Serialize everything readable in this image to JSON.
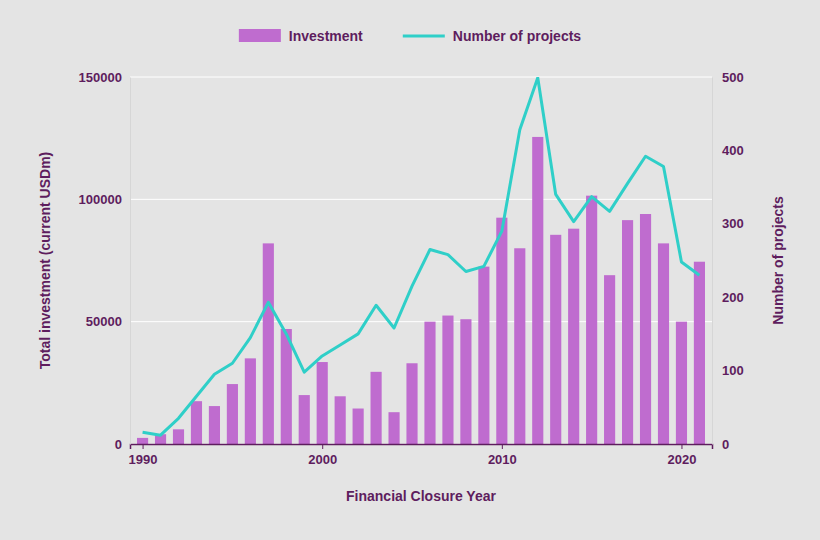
{
  "chart_data": {
    "type": "bar",
    "x": [
      1990,
      1991,
      1992,
      1993,
      1994,
      1995,
      1996,
      1997,
      1998,
      1999,
      2000,
      2001,
      2002,
      2003,
      2004,
      2005,
      2006,
      2007,
      2008,
      2009,
      2010,
      2011,
      2012,
      2013,
      2014,
      2015,
      2016,
      2017,
      2018,
      2019,
      2020,
      2021
    ],
    "x_label": "Financial Closure Year",
    "y_label": "Total investment (current USDm)",
    "y2_label": "Number of projects",
    "xlim": [
      1989.3,
      2021.7
    ],
    "xticks": [
      1990,
      2000,
      2010,
      2020
    ],
    "ylim": [
      0,
      150000
    ],
    "yticks": [
      0,
      50000,
      100000,
      150000
    ],
    "y2lim": [
      0,
      500
    ],
    "y2ticks": [
      0,
      100,
      200,
      300,
      400,
      500
    ],
    "grid": true,
    "legend": "top",
    "series": [
      {
        "name": "Investment",
        "type": "bar",
        "color": "#bf6ccf",
        "values": [
          2500,
          4000,
          6000,
          17500,
          15500,
          24500,
          35000,
          82000,
          47000,
          20000,
          33500,
          19500,
          14500,
          29500,
          13000,
          33000,
          50000,
          52500,
          51000,
          72500,
          92500,
          80000,
          125500,
          85500,
          88000,
          101500,
          69000,
          91500,
          94000,
          82000,
          50000,
          74500
        ]
      },
      {
        "name": "Number of projects",
        "type": "line",
        "axis": "y2",
        "color": "#2fcfc8",
        "values": [
          16,
          12,
          35,
          65,
          95,
          110,
          145,
          193,
          150,
          98,
          120,
          135,
          150,
          189,
          158,
          215,
          265,
          258,
          235,
          242,
          290,
          428,
          499,
          340,
          303,
          337,
          317,
          355,
          392,
          378,
          248,
          230
        ]
      }
    ]
  }
}
